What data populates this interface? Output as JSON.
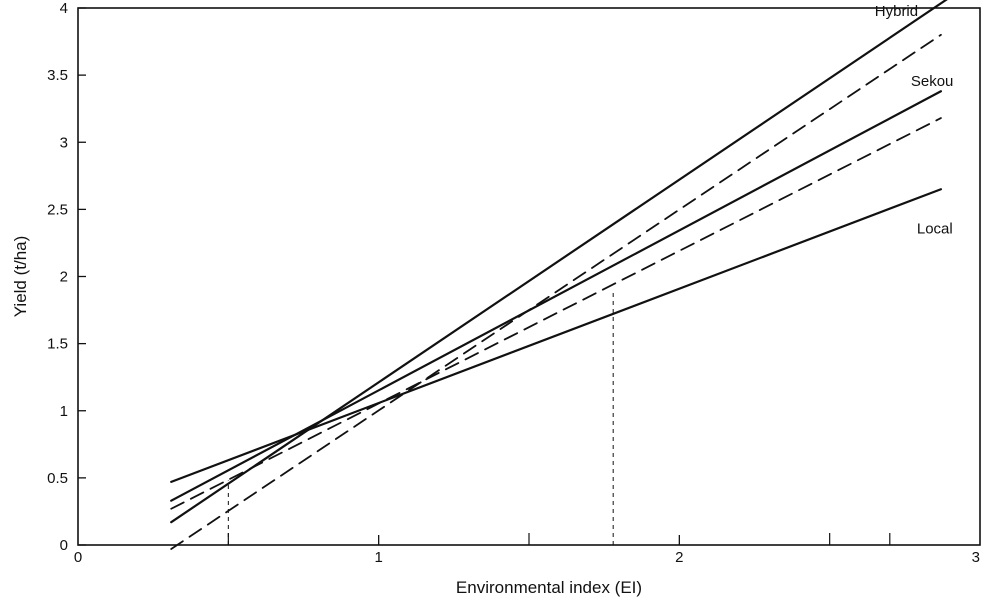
{
  "chart_data": {
    "type": "line",
    "xlabel": "Environmental index (EI)",
    "ylabel": "Yield (t/ha)",
    "xlim": [
      0,
      3
    ],
    "ylim": [
      0,
      4
    ],
    "xticks": [
      0,
      1,
      2,
      3
    ],
    "yticks": [
      0,
      0.5,
      1,
      1.5,
      2,
      2.5,
      3,
      3.5,
      4
    ],
    "xtick_labels": [
      "0",
      "1",
      "2",
      "3"
    ],
    "ytick_labels": [
      "0",
      "0.5",
      "1",
      "1.5",
      "2",
      "2.5",
      "3",
      "3.5",
      "4"
    ],
    "minor_xticks": [
      0.5,
      1.5,
      2.5,
      2.7
    ],
    "grid": false,
    "legend": "none",
    "series": [
      {
        "name": "Hybrid",
        "style": "solid",
        "x": [
          0.31,
          2.9
        ],
        "y": [
          0.17,
          4.08
        ]
      },
      {
        "name": "Sekou",
        "style": "solid",
        "x": [
          0.31,
          2.87
        ],
        "y": [
          0.33,
          3.38
        ]
      },
      {
        "name": "Local",
        "style": "solid",
        "x": [
          0.31,
          2.87
        ],
        "y": [
          0.47,
          2.65
        ]
      },
      {
        "name": "",
        "style": "dashed",
        "x": [
          0.31,
          2.87
        ],
        "y": [
          -0.03,
          3.8
        ]
      },
      {
        "name": "",
        "style": "dashed",
        "x": [
          0.31,
          2.87
        ],
        "y": [
          0.27,
          3.18
        ]
      }
    ],
    "reference_lines": [
      {
        "x": 0.5,
        "y_from": 0,
        "y_to": 0.48
      },
      {
        "x": 1.78,
        "y_from": 0,
        "y_to": 1.88
      }
    ],
    "annotations": [
      {
        "text": "Hybrid",
        "x": 2.65,
        "y": 3.94
      },
      {
        "text": "Sekou",
        "x": 2.77,
        "y": 3.42
      },
      {
        "text": "Local",
        "x": 2.79,
        "y": 2.32
      }
    ]
  }
}
